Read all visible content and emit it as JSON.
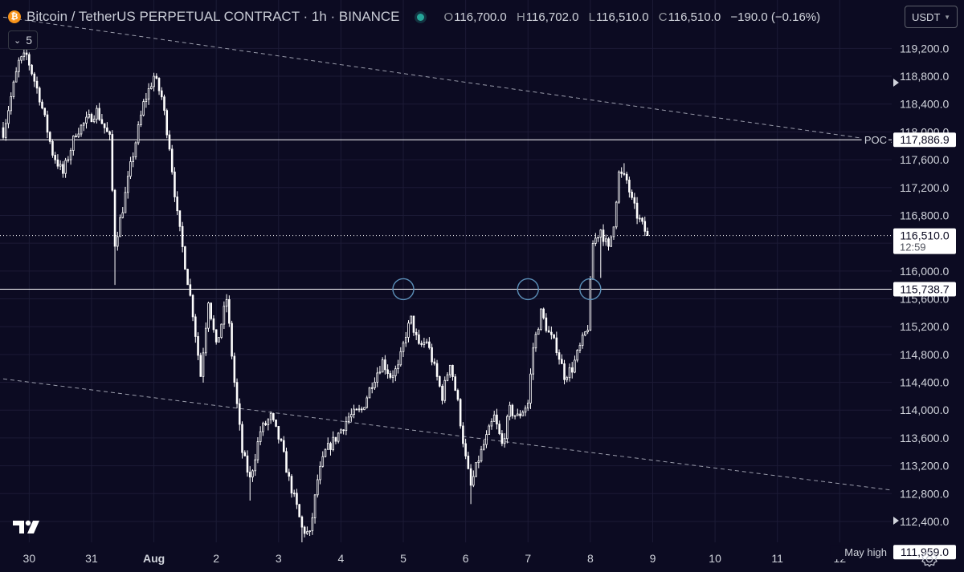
{
  "header": {
    "symbol": "Bitcoin / TetherUS PERPETUAL CONTRACT · 1h · BINANCE",
    "coin_glyph": "₿",
    "open_key": "O",
    "open": "116,700.0",
    "high_key": "H",
    "high": "116,702.0",
    "low_key": "L",
    "low": "116,510.0",
    "close_key": "C",
    "close": "116,510.0",
    "change": "−190.0 (−0.16%)"
  },
  "indicators_toggle": {
    "count": "5"
  },
  "currency": {
    "label": "USDT"
  },
  "chart_data": {
    "type": "candlestick",
    "timeframe": "1h",
    "x_ticks": [
      "30",
      "31",
      "Aug",
      "2",
      "3",
      "4",
      "5",
      "6",
      "7",
      "8",
      "9",
      "10",
      "11",
      "12"
    ],
    "y_ticks": [
      "119,200.0",
      "118,800.0",
      "118,400.0",
      "118,000.0",
      "117,600.0",
      "117,200.0",
      "116,800.0",
      "116,400.0",
      "116,000.0",
      "115,600.0",
      "115,200.0",
      "114,800.0",
      "114,400.0",
      "114,000.0",
      "113,600.0",
      "113,200.0",
      "112,800.0",
      "112,400.0"
    ],
    "y_range": [
      112100,
      119550
    ],
    "x_range": [
      "2025-07-29T14:00",
      "2025-08-12T20:00"
    ],
    "price_anchors": [
      [
        "2025-07-29T14:00",
        118000
      ],
      [
        "2025-07-29T20:00",
        119000
      ],
      [
        "2025-07-29T23:00",
        119100
      ],
      [
        "2025-07-30T04:00",
        118500
      ],
      [
        "2025-07-30T09:00",
        117700
      ],
      [
        "2025-07-30T13:00",
        117400
      ],
      [
        "2025-07-30T18:00",
        118000
      ],
      [
        "2025-07-31T02:00",
        118300
      ],
      [
        "2025-07-31T07:00",
        117900
      ],
      [
        "2025-07-31T09:00",
        116400
      ],
      [
        "2025-07-31T12:00",
        116900
      ],
      [
        "2025-07-31T15:00",
        117500
      ],
      [
        "2025-07-31T20:00",
        118400
      ],
      [
        "2025-08-01T00:00",
        118800
      ],
      [
        "2025-08-01T03:00",
        118500
      ],
      [
        "2025-08-01T06:00",
        117800
      ],
      [
        "2025-08-01T09:00",
        116800
      ],
      [
        "2025-08-01T12:00",
        116100
      ],
      [
        "2025-08-01T15:00",
        115400
      ],
      [
        "2025-08-01T18:00",
        114500
      ],
      [
        "2025-08-01T21:00",
        115600
      ],
      [
        "2025-08-02T00:00",
        114900
      ],
      [
        "2025-08-02T04:00",
        115600
      ],
      [
        "2025-08-02T07:00",
        114400
      ],
      [
        "2025-08-02T10:00",
        113400
      ],
      [
        "2025-08-02T13:00",
        113000
      ],
      [
        "2025-08-02T17:00",
        113700
      ],
      [
        "2025-08-02T21:00",
        113900
      ],
      [
        "2025-08-03T01:00",
        113500
      ],
      [
        "2025-08-03T04:00",
        113000
      ],
      [
        "2025-08-03T07:00",
        112600
      ],
      [
        "2025-08-03T09:00",
        112300
      ],
      [
        "2025-08-03T12:00",
        112200
      ],
      [
        "2025-08-03T15:00",
        113000
      ],
      [
        "2025-08-03T18:00",
        113400
      ],
      [
        "2025-08-03T22:00",
        113600
      ],
      [
        "2025-08-04T03:00",
        113900
      ],
      [
        "2025-08-04T08:00",
        114000
      ],
      [
        "2025-08-04T12:00",
        114400
      ],
      [
        "2025-08-04T16:00",
        114700
      ],
      [
        "2025-08-04T19:00",
        114500
      ],
      [
        "2025-08-04T22:00",
        114600
      ],
      [
        "2025-08-05T01:00",
        115100
      ],
      [
        "2025-08-05T03:00",
        115300
      ],
      [
        "2025-08-05T06:00",
        114900
      ],
      [
        "2025-08-05T09:00",
        115000
      ],
      [
        "2025-08-05T12:00",
        114600
      ],
      [
        "2025-08-05T15:00",
        114200
      ],
      [
        "2025-08-05T18:00",
        114700
      ],
      [
        "2025-08-05T21:00",
        114100
      ],
      [
        "2025-08-06T00:00",
        113300
      ],
      [
        "2025-08-06T02:00",
        112900
      ],
      [
        "2025-08-06T05:00",
        113300
      ],
      [
        "2025-08-06T08:00",
        113600
      ],
      [
        "2025-08-06T11:00",
        113900
      ],
      [
        "2025-08-06T14:00",
        113500
      ],
      [
        "2025-08-06T17:00",
        114000
      ],
      [
        "2025-08-06T20:00",
        113900
      ],
      [
        "2025-08-07T00:00",
        114100
      ],
      [
        "2025-08-07T02:00",
        114900
      ],
      [
        "2025-08-07T05:00",
        115400
      ],
      [
        "2025-08-07T08:00",
        115100
      ],
      [
        "2025-08-07T11:00",
        114900
      ],
      [
        "2025-08-07T14:00",
        114500
      ],
      [
        "2025-08-07T17:00",
        114600
      ],
      [
        "2025-08-07T20:00",
        114900
      ],
      [
        "2025-08-07T23:00",
        115200
      ],
      [
        "2025-08-08T01:00",
        116400
      ],
      [
        "2025-08-08T04:00",
        116600
      ],
      [
        "2025-08-08T07:00",
        116300
      ],
      [
        "2025-08-08T09:00",
        116700
      ],
      [
        "2025-08-08T11:00",
        117400
      ],
      [
        "2025-08-08T14:00",
        117300
      ],
      [
        "2025-08-08T16:00",
        117000
      ],
      [
        "2025-08-08T18:00",
        116800
      ],
      [
        "2025-08-08T20:00",
        116650
      ],
      [
        "2025-08-08T22:00",
        116510
      ]
    ],
    "wick_extremes": [
      [
        "2025-07-31T09:00",
        "low",
        115800
      ],
      [
        "2025-08-02T13:00",
        "low",
        112700
      ],
      [
        "2025-08-03T09:00",
        "low",
        111980
      ],
      [
        "2025-08-06T02:00",
        "low",
        112650
      ],
      [
        "2025-08-08T04:00",
        "low",
        115900
      ],
      [
        "2025-08-08T13:00",
        "high",
        117550
      ]
    ],
    "horizontal_lines": [
      {
        "label": "POC",
        "price_label": "117,886.9",
        "price": 117886.9,
        "style": "solid"
      },
      {
        "label": "",
        "price_label": "115,738.7",
        "price": 115738.7,
        "style": "solid"
      },
      {
        "label": "May high",
        "price_label": "111,959.0",
        "price": 111959.0,
        "style": "dashed"
      }
    ],
    "last_price": {
      "price_label": "116,510.0",
      "countdown": "12:59",
      "price": 116510.0,
      "style": "dotted"
    },
    "channel_lines": [
      {
        "from": [
          "2025-07-29T14:00",
          119650
        ],
        "to": [
          "2025-08-12T20:00",
          117850
        ]
      },
      {
        "from": [
          "2025-07-29T14:00",
          114450
        ],
        "to": [
          "2025-08-12T20:00",
          112850
        ]
      }
    ],
    "touch_markers": [
      [
        "2025-08-05T00:00",
        115738.7
      ],
      [
        "2025-08-07T00:00",
        115738.7
      ],
      [
        "2025-08-08T00:00",
        115738.7
      ]
    ],
    "colors": {
      "background": "#0c0b22",
      "candles": "#ffffff",
      "grid": "#1c1b36",
      "axis_text": "#d1d4dc",
      "lines": "#ffffff",
      "channel": "#9a9cab",
      "markers": "#5b8fb8"
    }
  }
}
